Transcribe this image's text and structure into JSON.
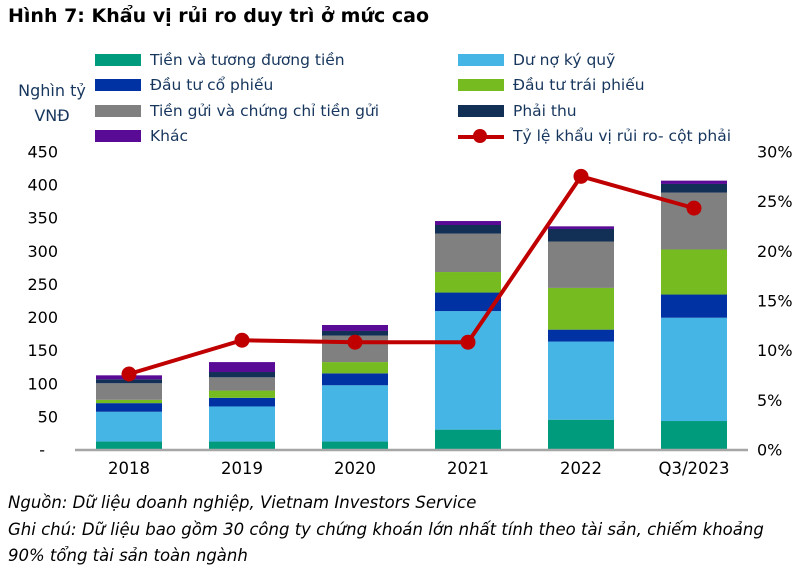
{
  "title": "Hình 7: Khẩu vị rủi ro duy trì ở mức cao",
  "left_axis_unit": "Nghìn tỷ\nVNĐ",
  "notes": {
    "source": "Nguồn: Dữ liệu doanh nghiệp, Vietnam Investors Service",
    "note": "Ghi chú: Dữ liệu bao gồm 30 công ty chứng khoán lớn nhất tính theo tài sản, chiếm khoảng 90% tổng tài sản toàn ngành"
  },
  "colors": {
    "axis_line": "#A6A6A6",
    "tick_text": "#000000",
    "legend_text": "#17365D",
    "line_series": "#C00000"
  },
  "chart_data": {
    "type": "bar",
    "subtype": "stacked-bar-with-line-combo",
    "categories": [
      "2018",
      "2019",
      "2020",
      "2021",
      "2022",
      "Q3/2023"
    ],
    "series": [
      {
        "name": "Tiền và tương đương tiền",
        "color": "#009B7D",
        "values": [
          12,
          12,
          12,
          30,
          45,
          43
        ]
      },
      {
        "name": "Dư nợ ký quỹ",
        "color": "#45B5E5",
        "values": [
          45,
          53,
          85,
          179,
          118,
          156
        ]
      },
      {
        "name": "Đầu tư cổ phiếu",
        "color": "#0032A3",
        "values": [
          13,
          13,
          18,
          28,
          18,
          35
        ]
      },
      {
        "name": "Đầu tư trái phiếu",
        "color": "#76BC21",
        "values": [
          5,
          11,
          17,
          31,
          63,
          68
        ]
      },
      {
        "name": "Tiền gửi và chứng chỉ tiền gửi",
        "color": "#808080",
        "values": [
          25,
          20,
          40,
          58,
          70,
          86
        ]
      },
      {
        "name": "Phải thu",
        "color": "#122F55",
        "values": [
          6,
          8,
          7,
          13,
          19,
          13
        ]
      },
      {
        "name": "Khác",
        "color": "#5A0B96",
        "values": [
          6,
          15,
          9,
          6,
          4,
          5
        ]
      }
    ],
    "line_series": {
      "name": "Tỷ lệ khẩu vị rủi ro- cột phải",
      "color": "#C00000",
      "axis": "right",
      "values_percent": [
        7.6,
        11,
        10.8,
        10.8,
        27.5,
        24.3
      ]
    },
    "left_axis": {
      "label": "Nghìn tỷ VNĐ",
      "min": 0,
      "max": 450,
      "tick_values": [
        450,
        400,
        350,
        300,
        250,
        200,
        150,
        100,
        50,
        0
      ],
      "tick_labels": [
        "450",
        "400",
        "350",
        "300",
        "250",
        "200",
        "150",
        "100",
        "50",
        "-"
      ]
    },
    "right_axis": {
      "min": 0,
      "max": 30,
      "tick_values": [
        30,
        25,
        20,
        15,
        10,
        5,
        0
      ],
      "tick_labels": [
        "30%",
        "25%",
        "20%",
        "15%",
        "10%",
        "5%",
        "0%"
      ]
    },
    "legend_position": "top-two-columns",
    "grid": false
  }
}
